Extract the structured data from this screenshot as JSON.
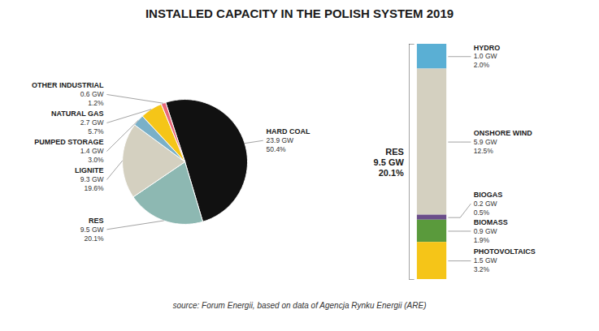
{
  "chart_data": [
    {
      "type": "pie",
      "title": "INSTALLED CAPACITY IN THE POLISH SYSTEM 2019",
      "caption": "source: Forum Energii, based on data of Agencja Rynku Energii (ARE)",
      "categories": [
        "HARD COAL",
        "RES",
        "LIGNITE",
        "PUMPED STORAGE",
        "NATURAL GAS",
        "OTHER INDUSTRIAL"
      ],
      "values": [
        50.4,
        20.1,
        19.6,
        3.0,
        5.7,
        1.2
      ],
      "value_labels": [
        "50.4%",
        "20.1%",
        "19.6%",
        "3.0%",
        "5.7%",
        "1.2%"
      ],
      "gw_labels": [
        "23.9 GW",
        "9.5 GW",
        "9.3 GW",
        "1.4 GW",
        "2.7 GW",
        "0.6 GW"
      ],
      "colors": [
        "#111111",
        "#8db8b2",
        "#d4d0c0",
        "#7ab0c8",
        "#f5c518",
        "#e8697a"
      ],
      "data_labels": true
    },
    {
      "type": "bar",
      "stacked": true,
      "annotation": "RES\n9.5 GW\n20.1%",
      "ylim": [
        0,
        9.5
      ],
      "tick_labels": false,
      "data_labels": true,
      "series": [
        {
          "name": "HYDRO",
          "color": "#5aafd4",
          "values": [
            1.0
          ],
          "value_labels": [
            "1.0 GW"
          ],
          "pct_labels": [
            "2.0%"
          ]
        },
        {
          "name": "ONSHORE WIND",
          "color": "#d4d0c0",
          "values": [
            5.9
          ],
          "value_labels": [
            "5.9 GW"
          ],
          "pct_labels": [
            "12.5%"
          ]
        },
        {
          "name": "BIOGAS",
          "color": "#6b4e8a",
          "values": [
            0.2
          ],
          "value_labels": [
            "0.2 GW"
          ],
          "pct_labels": [
            "0.5%"
          ]
        },
        {
          "name": "BIOMASS",
          "color": "#5a9a3c",
          "values": [
            0.9
          ],
          "value_labels": [
            "0.9 GW"
          ],
          "pct_labels": [
            "1.9%"
          ]
        },
        {
          "name": "PHOTOVOLTAICS",
          "color": "#f5c518",
          "values": [
            1.5
          ],
          "value_labels": [
            "1.5 GW"
          ],
          "pct_labels": [
            "3.2%"
          ]
        }
      ]
    }
  ]
}
